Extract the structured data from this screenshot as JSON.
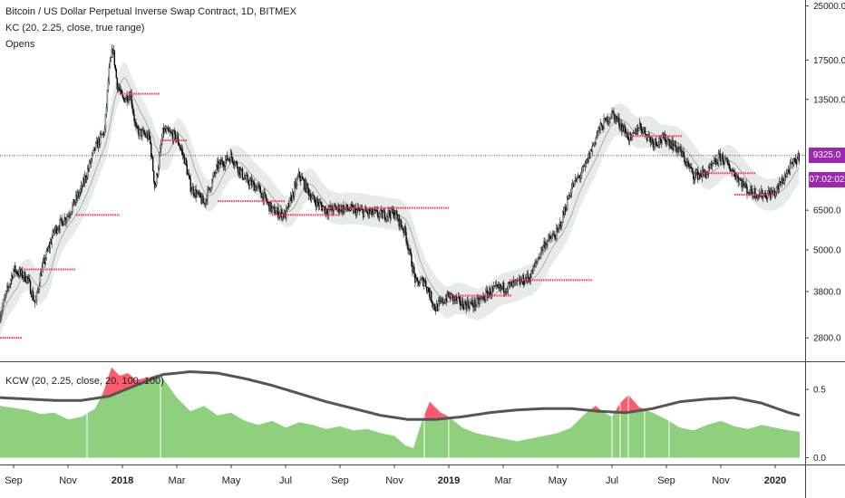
{
  "title": "Bitcoin / US Dollar Perpetual Inverse Swap Contract, 1D, BITMEX",
  "indicators": {
    "kc": "KC (20, 2.25, close, true range)",
    "opens": "Opens",
    "kcw": "KCW (20, 2.25, close, 20, 100, 100)"
  },
  "price_label": "9325.0",
  "countdown_label": "07:02:02",
  "colors": {
    "up_candle": "#ffffff",
    "down_candle": "#000000",
    "channel_fill": "#e3e7e3",
    "open_line": "#ff3355",
    "price_line": "#9c27b0",
    "kcw_fill": "#8fd07e",
    "kcw_hot": "#ff5b6e",
    "kcw_avg": "#555555",
    "tag_bg": "#9c27b0"
  },
  "chart_data": [
    {
      "type": "candlestick",
      "title": "Bitcoin / US Dollar Perpetual Inverse Swap Contract, 1D, BITMEX",
      "scale": "log",
      "y_ticks": [
        "25000.0",
        "17500.0",
        "13500.0",
        "9325.0",
        "6500.0",
        "5000.0",
        "3800.0",
        "2800.0"
      ],
      "y_tick_values": [
        25000,
        17500,
        13500,
        9325,
        6500,
        5000,
        3800,
        2800
      ],
      "x_ticks": [
        "Sep",
        "Nov",
        "2018",
        "Mar",
        "May",
        "Jul",
        "Sep",
        "Nov",
        "2019",
        "Mar",
        "May",
        "Jul",
        "Sep",
        "Nov",
        "2020"
      ],
      "x_tick_months": [
        0,
        2,
        4,
        6,
        8,
        10,
        12,
        14,
        16,
        18,
        20,
        22,
        24,
        26,
        28
      ],
      "ylim": [
        2400,
        26000
      ],
      "month_range": [
        -0.5,
        29.1
      ],
      "current_price": 9325.0,
      "close_series": [
        [
          -0.5,
          3250
        ],
        [
          0,
          4400
        ],
        [
          0.5,
          4150
        ],
        [
          0.8,
          3500
        ],
        [
          1,
          4300
        ],
        [
          1.5,
          5700
        ],
        [
          2,
          6300
        ],
        [
          2.5,
          7500
        ],
        [
          3,
          9800
        ],
        [
          3.35,
          11000
        ],
        [
          3.5,
          16000
        ],
        [
          3.65,
          19000
        ],
        [
          3.8,
          15000
        ],
        [
          4,
          13500
        ],
        [
          4.3,
          14000
        ],
        [
          4.5,
          11000
        ],
        [
          5,
          10500
        ],
        [
          5.2,
          7500
        ],
        [
          5.5,
          11000
        ],
        [
          6,
          10500
        ],
        [
          6.3,
          9000
        ],
        [
          6.5,
          7600
        ],
        [
          7,
          6800
        ],
        [
          7.5,
          8700
        ],
        [
          8,
          9300
        ],
        [
          8.5,
          8000
        ],
        [
          9,
          7500
        ],
        [
          9.5,
          6500
        ],
        [
          10,
          6300
        ],
        [
          10.5,
          8200
        ],
        [
          11,
          7000
        ],
        [
          11.5,
          6500
        ],
        [
          12,
          6600
        ],
        [
          12.5,
          6500
        ],
        [
          13,
          6400
        ],
        [
          13.5,
          6300
        ],
        [
          14,
          6400
        ],
        [
          14.4,
          5600
        ],
        [
          14.8,
          4000
        ],
        [
          15.1,
          4100
        ],
        [
          15.5,
          3400
        ],
        [
          16,
          3700
        ],
        [
          16.5,
          3500
        ],
        [
          17,
          3500
        ],
        [
          17.5,
          3800
        ],
        [
          18,
          3900
        ],
        [
          18.5,
          4000
        ],
        [
          19,
          4200
        ],
        [
          19.5,
          5200
        ],
        [
          20,
          5600
        ],
        [
          20.5,
          7500
        ],
        [
          21,
          8600
        ],
        [
          21.5,
          11000
        ],
        [
          22,
          12300
        ],
        [
          22.3,
          11500
        ],
        [
          22.7,
          10300
        ],
        [
          23,
          11400
        ],
        [
          23.5,
          10200
        ],
        [
          24,
          10400
        ],
        [
          24.5,
          9600
        ],
        [
          25,
          8200
        ],
        [
          25.5,
          8300
        ],
        [
          26,
          9300
        ],
        [
          26.5,
          8300
        ],
        [
          27,
          7400
        ],
        [
          27.5,
          7200
        ],
        [
          28,
          7300
        ],
        [
          28.5,
          8500
        ],
        [
          28.9,
          9325
        ]
      ],
      "opens": [
        {
          "start": -0.5,
          "end": 0.3,
          "value": 2800
        },
        {
          "start": 0.3,
          "end": 2.3,
          "value": 4400
        },
        {
          "start": 2.3,
          "end": 3.9,
          "value": 6300
        },
        {
          "start": 3.9,
          "end": 5.4,
          "value": 14000
        },
        {
          "start": 5.4,
          "end": 6.4,
          "value": 10300
        },
        {
          "start": 7.5,
          "end": 10.0,
          "value": 6900
        },
        {
          "start": 9.5,
          "end": 12.0,
          "value": 6300
        },
        {
          "start": 11.3,
          "end": 16.0,
          "value": 6600
        },
        {
          "start": 16.0,
          "end": 18.3,
          "value": 3700
        },
        {
          "start": 18.3,
          "end": 21.3,
          "value": 4100
        },
        {
          "start": 22.6,
          "end": 24.6,
          "value": 10600
        },
        {
          "start": 25.3,
          "end": 27.3,
          "value": 8300
        },
        {
          "start": 26.5,
          "end": 28.0,
          "value": 7200
        }
      ]
    },
    {
      "type": "area",
      "title": "KCW (20, 2.25, close, 20, 100, 100)",
      "y_ticks": [
        "0.5",
        "0.0"
      ],
      "y_tick_values": [
        0.5,
        0.0
      ],
      "ylim": [
        -0.05,
        0.7
      ],
      "kcw": [
        [
          -0.5,
          0.38
        ],
        [
          0.5,
          0.35
        ],
        [
          1,
          0.32
        ],
        [
          1.5,
          0.33
        ],
        [
          2,
          0.28
        ],
        [
          2.5,
          0.3
        ],
        [
          3,
          0.36
        ],
        [
          3.3,
          0.48
        ],
        [
          3.6,
          0.66
        ],
        [
          3.9,
          0.6
        ],
        [
          4.2,
          0.62
        ],
        [
          4.5,
          0.57
        ],
        [
          5,
          0.59
        ],
        [
          5.3,
          0.61
        ],
        [
          5.5,
          0.58
        ],
        [
          6,
          0.44
        ],
        [
          6.5,
          0.34
        ],
        [
          7,
          0.38
        ],
        [
          7.5,
          0.31
        ],
        [
          8,
          0.33
        ],
        [
          8.5,
          0.27
        ],
        [
          9,
          0.24
        ],
        [
          9.5,
          0.27
        ],
        [
          10,
          0.22
        ],
        [
          10.5,
          0.26
        ],
        [
          11,
          0.24
        ],
        [
          11.5,
          0.21
        ],
        [
          12,
          0.23
        ],
        [
          12.5,
          0.2
        ],
        [
          13,
          0.21
        ],
        [
          13.5,
          0.18
        ],
        [
          14,
          0.16
        ],
        [
          14.4,
          0.09
        ],
        [
          14.7,
          0.07
        ],
        [
          15.0,
          0.26
        ],
        [
          15.3,
          0.41
        ],
        [
          15.7,
          0.33
        ],
        [
          16,
          0.3
        ],
        [
          16.5,
          0.22
        ],
        [
          17,
          0.18
        ],
        [
          17.5,
          0.16
        ],
        [
          18,
          0.14
        ],
        [
          18.5,
          0.12
        ],
        [
          19,
          0.14
        ],
        [
          19.5,
          0.16
        ],
        [
          20,
          0.18
        ],
        [
          20.5,
          0.22
        ],
        [
          21,
          0.32
        ],
        [
          21.4,
          0.38
        ],
        [
          21.7,
          0.33
        ],
        [
          22,
          0.3
        ],
        [
          22.3,
          0.4
        ],
        [
          22.6,
          0.46
        ],
        [
          23,
          0.37
        ],
        [
          23.5,
          0.33
        ],
        [
          24,
          0.28
        ],
        [
          24.5,
          0.22
        ],
        [
          25,
          0.2
        ],
        [
          25.5,
          0.24
        ],
        [
          26,
          0.27
        ],
        [
          26.5,
          0.23
        ],
        [
          27,
          0.21
        ],
        [
          27.5,
          0.24
        ],
        [
          28,
          0.22
        ],
        [
          28.5,
          0.2
        ],
        [
          28.9,
          0.19
        ]
      ],
      "kcw_average": [
        [
          -0.5,
          0.44
        ],
        [
          0.5,
          0.43
        ],
        [
          1.5,
          0.42
        ],
        [
          2.5,
          0.42
        ],
        [
          3.5,
          0.45
        ],
        [
          4.5,
          0.53
        ],
        [
          5.5,
          0.61
        ],
        [
          6.5,
          0.63
        ],
        [
          7.5,
          0.62
        ],
        [
          8.5,
          0.58
        ],
        [
          9.5,
          0.53
        ],
        [
          10.5,
          0.47
        ],
        [
          11.5,
          0.41
        ],
        [
          12.5,
          0.36
        ],
        [
          13.5,
          0.31
        ],
        [
          14.5,
          0.28
        ],
        [
          15.5,
          0.28
        ],
        [
          16.5,
          0.3
        ],
        [
          17.5,
          0.33
        ],
        [
          18.5,
          0.35
        ],
        [
          19.5,
          0.36
        ],
        [
          20.5,
          0.36
        ],
        [
          21.5,
          0.34
        ],
        [
          22.5,
          0.33
        ],
        [
          23.5,
          0.36
        ],
        [
          24.5,
          0.41
        ],
        [
          25.5,
          0.43
        ],
        [
          26.5,
          0.44
        ],
        [
          27.5,
          0.4
        ],
        [
          28.5,
          0.33
        ],
        [
          28.9,
          0.31
        ]
      ],
      "signal_lines": [
        2.7,
        5.4,
        15.1,
        16.0,
        22.0,
        22.3,
        22.6,
        23.2,
        24.1
      ]
    }
  ]
}
